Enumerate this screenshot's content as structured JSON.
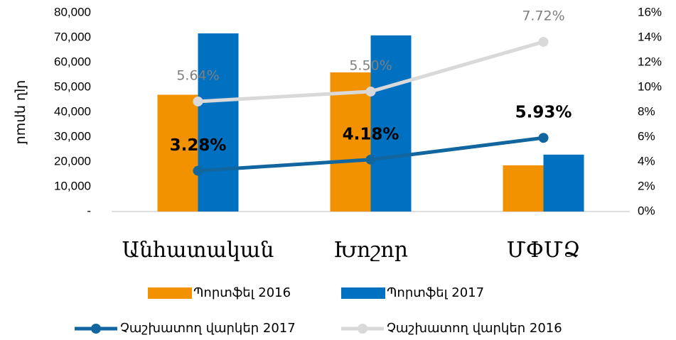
{
  "chart_data": {
    "type": "bar",
    "y_axis_label": "մլն դրամ",
    "categories": [
      "Անհատական",
      "Խոշոր",
      "ՄՓՄՁ"
    ],
    "series": [
      {
        "name": "Պորտֆել 2016",
        "type": "bar",
        "color": "#f39200",
        "values": [
          47000,
          56000,
          18600
        ]
      },
      {
        "name": "Պորտֆել 2017",
        "type": "bar",
        "color": "#0070c0",
        "values": [
          71700,
          70900,
          22900
        ]
      },
      {
        "name": "Չաշխատող վարկեր 2017",
        "type": "line",
        "axis": "y2",
        "color": "#1166a0",
        "values": [
          3.28,
          4.18,
          5.93
        ],
        "value_labels": [
          "3.28%",
          "4.18%",
          "5.93%"
        ]
      },
      {
        "name": "Չաշխատող վարկեր 2016",
        "type": "line",
        "axis": "y2",
        "color": "#d9d9d9",
        "values": [
          8.86,
          9.66,
          13.66
        ],
        "annotations": [
          "5.64%",
          "5.50%",
          "7.72%"
        ]
      }
    ],
    "ylim": [
      0,
      80000
    ],
    "yticks": [
      {
        "value": 0,
        "label": "-"
      },
      {
        "value": 10000,
        "label": "10,000"
      },
      {
        "value": 20000,
        "label": "20,000"
      },
      {
        "value": 30000,
        "label": "30,000"
      },
      {
        "value": 40000,
        "label": "40,000"
      },
      {
        "value": 50000,
        "label": "50,000"
      },
      {
        "value": 60000,
        "label": "60,000"
      },
      {
        "value": 70000,
        "label": "70,000"
      },
      {
        "value": 80000,
        "label": "80,000"
      }
    ],
    "y2lim": [
      0,
      16
    ],
    "y2ticks": [
      {
        "value": 0,
        "label": "0%"
      },
      {
        "value": 2,
        "label": "2%"
      },
      {
        "value": 4,
        "label": "4%"
      },
      {
        "value": 6,
        "label": "6%"
      },
      {
        "value": 8,
        "label": "8%"
      },
      {
        "value": 10,
        "label": "10%"
      },
      {
        "value": 12,
        "label": "12%"
      },
      {
        "value": 14,
        "label": "14%"
      },
      {
        "value": 16,
        "label": "16%"
      }
    ]
  }
}
